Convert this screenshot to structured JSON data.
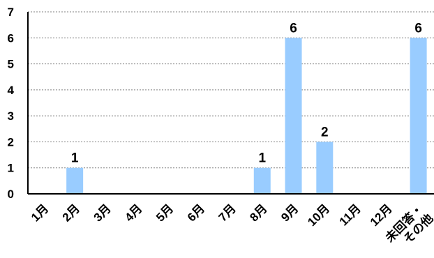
{
  "chart_data": {
    "type": "bar",
    "title": "",
    "xlabel": "",
    "ylabel": "",
    "categories": [
      "1月",
      "2月",
      "3月",
      "4月",
      "5月",
      "6月",
      "7月",
      "8月",
      "9月",
      "10月",
      "11月",
      "12月",
      "未回答・その他"
    ],
    "x_tick_lines": [
      [
        "1月"
      ],
      [
        "2月"
      ],
      [
        "3月"
      ],
      [
        "4月"
      ],
      [
        "5月"
      ],
      [
        "6月"
      ],
      [
        "7月"
      ],
      [
        "8月"
      ],
      [
        "9月"
      ],
      [
        "10月"
      ],
      [
        "11月"
      ],
      [
        "12月"
      ],
      [
        "未回答・",
        "その他"
      ]
    ],
    "values": [
      0,
      1,
      0,
      0,
      0,
      0,
      0,
      1,
      6,
      2,
      0,
      0,
      6
    ],
    "data_labels": [
      "",
      "1",
      "",
      "",
      "",
      "",
      "",
      "1",
      "6",
      "2",
      "",
      "",
      "6"
    ],
    "y_ticks": [
      "0",
      "1",
      "2",
      "3",
      "4",
      "5",
      "6",
      "7"
    ],
    "ylim": [
      0,
      7
    ],
    "grid": true,
    "bar_color": "#99ccff",
    "grid_color": "#808080",
    "axis_color": "#000000"
  }
}
